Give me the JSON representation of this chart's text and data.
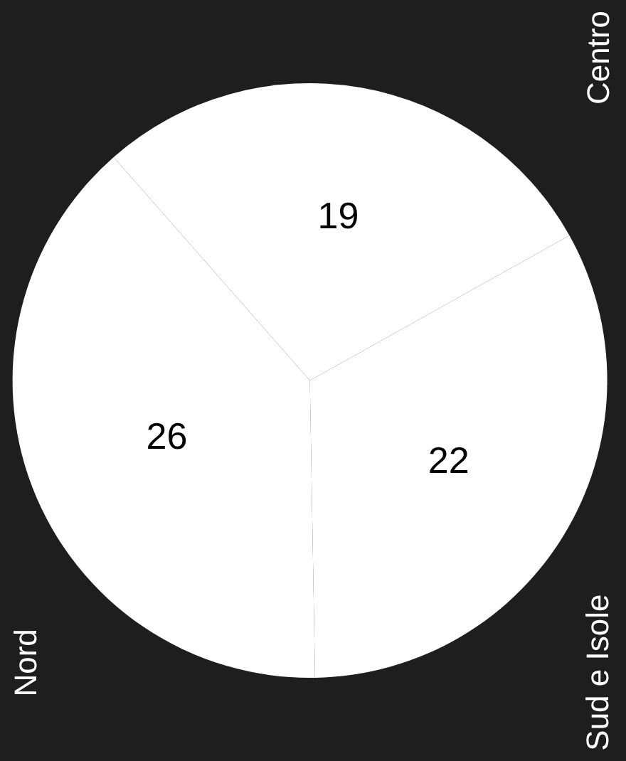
{
  "chart_data": {
    "type": "pie",
    "categories": [
      "Nord",
      "Centro",
      "Sud e Isole"
    ],
    "values": [
      26,
      19,
      22
    ],
    "colors": [
      "#ffffff",
      "#ffffff",
      "#ffffff"
    ],
    "data_labels": true,
    "legend": false
  }
}
